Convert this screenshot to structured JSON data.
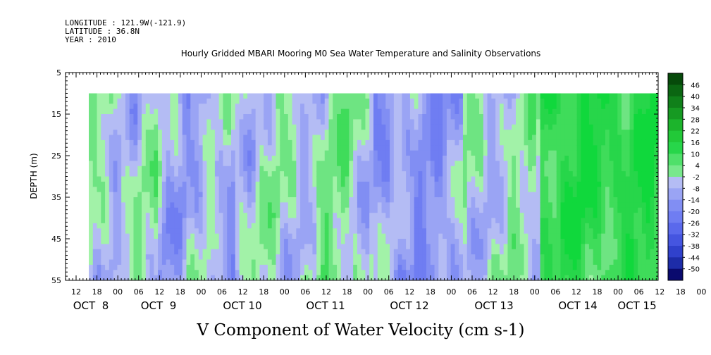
{
  "header": {
    "longitude": "LONGITUDE : 121.9W(-121.9)",
    "latitude": "LATITUDE : 36.8N",
    "year": "YEAR : 2010"
  },
  "chart_data": {
    "type": "heatmap",
    "title": "Hourly Gridded MBARI Mooring M0 Sea Water Temperature and Salinity Observations",
    "xlabel": "V Component of Water Velocity (cm s-1)",
    "ylabel": "DEPTH (m)",
    "ylim": [
      55,
      5
    ],
    "y_ticks": [
      5,
      15,
      25,
      35,
      45,
      55
    ],
    "x_hour_ticks": [
      "12",
      "18",
      "00",
      "06",
      "12",
      "18",
      "00",
      "06",
      "12",
      "18",
      "00",
      "06",
      "12",
      "18",
      "00",
      "06",
      "12",
      "18",
      "00",
      "06",
      "12",
      "18",
      "00",
      "06",
      "12",
      "18",
      "00",
      "06",
      "12",
      "18",
      "00",
      "06"
    ],
    "x_day_labels": [
      "OCT  8",
      "OCT  9",
      "OCT 10",
      "OCT 11",
      "OCT 12",
      "OCT 13",
      "OCT 14",
      "OCT 15"
    ],
    "data_depth_range": [
      10,
      55
    ],
    "colorbar_levels": [
      "46",
      "40",
      "34",
      "28",
      "22",
      "16",
      "10",
      "4",
      "-2",
      "-8",
      "-14",
      "-20",
      "-26",
      "-32",
      "-38",
      "-44",
      "-50"
    ],
    "colorbar_colors": {
      "high": "#064a0a",
      "mid_positive": "#27d64a",
      "near_zero_positive": "#a2f2a8",
      "near_zero_negative": "#b4bcf4",
      "mid_negative": "#6f7df2",
      "low": "#0a0a6e"
    }
  }
}
